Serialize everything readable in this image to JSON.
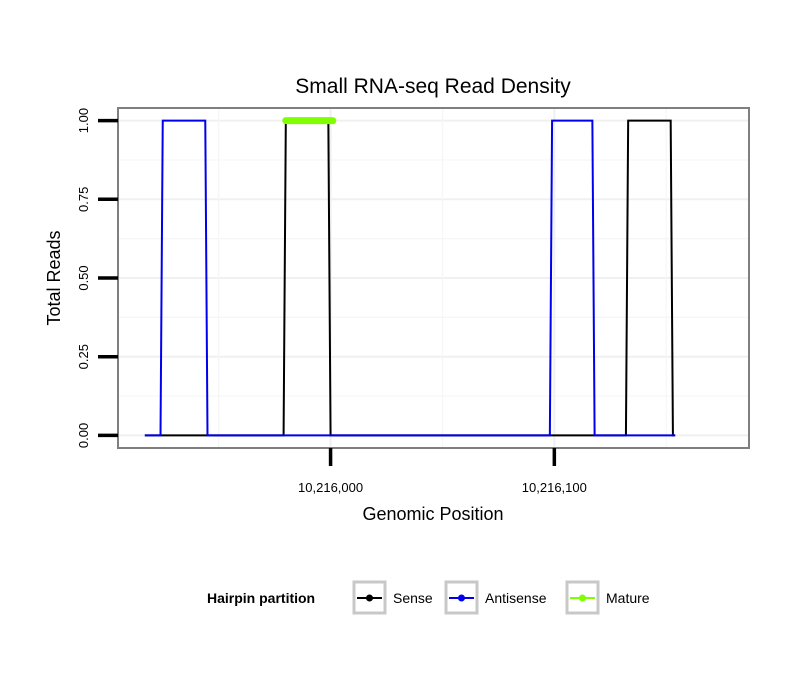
{
  "chart_data": {
    "type": "line",
    "title": "Small RNA-seq Read Density",
    "xlabel": "Genomic Position",
    "ylabel": "Total Reads",
    "xlim": [
      10215905,
      10216187
    ],
    "ylim": [
      -0.04,
      1.04
    ],
    "x_ticks": [
      10216000,
      10216100
    ],
    "x_tick_labels": [
      "10,216,000",
      "10,216,100"
    ],
    "y_ticks": [
      0,
      0.25,
      0.5,
      0.75,
      1
    ],
    "y_tick_labels": [
      "0.00",
      "0.25",
      "0.50",
      "0.75",
      "1.00"
    ],
    "grid": true,
    "legend": {
      "title": "Hairpin partition",
      "position": "bottom",
      "entries": [
        {
          "name": "Sense",
          "color": "#000000"
        },
        {
          "name": "Antisense",
          "color": "#0000ee"
        },
        {
          "name": "Mature",
          "color": "#7fff00"
        }
      ]
    },
    "series": [
      {
        "name": "Sense",
        "color": "#000000",
        "x": [
          10215917,
          10215978,
          10215979,
          10215980,
          10215981,
          10215998,
          10215999,
          10216000,
          10216001,
          10216097,
          10216098,
          10216131,
          10216132,
          10216133,
          10216134,
          10216151,
          10216152,
          10216153,
          10216154
        ],
        "y": [
          0,
          0,
          0,
          1,
          1,
          1,
          1,
          0,
          0,
          0,
          0,
          0,
          0,
          1,
          1,
          1,
          1,
          0,
          0
        ]
      },
      {
        "name": "Antisense",
        "color": "#0000ee",
        "x": [
          10215917,
          10215923,
          10215924,
          10215925,
          10215926,
          10215943,
          10215944,
          10215945,
          10215946,
          10216097,
          10216098,
          10216099,
          10216100,
          10216116,
          10216117,
          10216118,
          10216119,
          10216154
        ],
        "y": [
          0,
          0,
          0,
          1,
          1,
          1,
          1,
          0,
          0,
          0,
          0,
          1,
          1,
          1,
          1,
          0,
          0,
          0
        ]
      },
      {
        "name": "Mature",
        "color": "#7fff00",
        "x": [
          10215980,
          10216001
        ],
        "y": [
          1,
          1
        ]
      }
    ]
  }
}
